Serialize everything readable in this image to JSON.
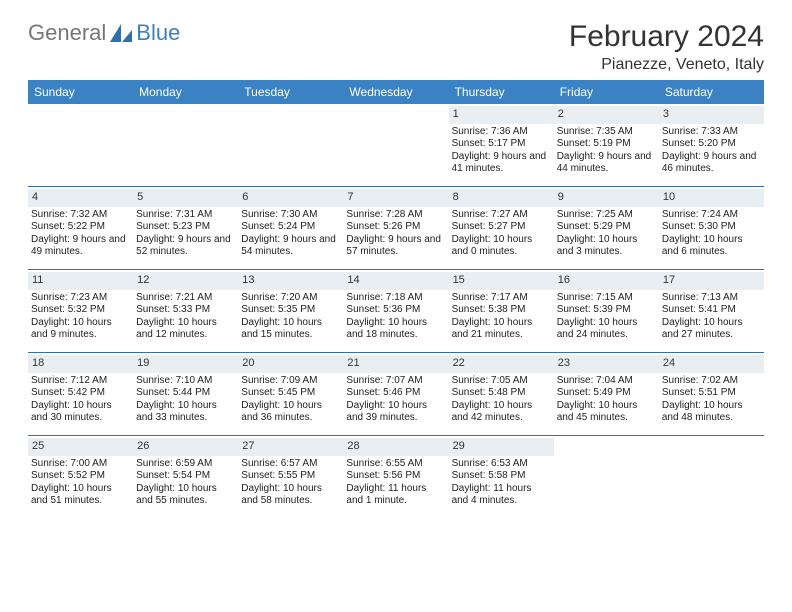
{
  "brand": {
    "part1": "General",
    "part2": "Blue"
  },
  "title": "February 2024",
  "location": "Pianezze, Veneto, Italy",
  "colors": {
    "header_bg": "#3b82c4",
    "band_bg": "#e9eef2",
    "rule": "#3b6fa0",
    "logo_blue": "#3b7fc4",
    "logo_gray": "#777",
    "text": "#222"
  },
  "day_names": [
    "Sunday",
    "Monday",
    "Tuesday",
    "Wednesday",
    "Thursday",
    "Friday",
    "Saturday"
  ],
  "weeks": [
    [
      {
        "n": "",
        "sr": "",
        "ss": "",
        "dl": ""
      },
      {
        "n": "",
        "sr": "",
        "ss": "",
        "dl": ""
      },
      {
        "n": "",
        "sr": "",
        "ss": "",
        "dl": ""
      },
      {
        "n": "",
        "sr": "",
        "ss": "",
        "dl": ""
      },
      {
        "n": "1",
        "sr": "Sunrise: 7:36 AM",
        "ss": "Sunset: 5:17 PM",
        "dl": "Daylight: 9 hours and 41 minutes."
      },
      {
        "n": "2",
        "sr": "Sunrise: 7:35 AM",
        "ss": "Sunset: 5:19 PM",
        "dl": "Daylight: 9 hours and 44 minutes."
      },
      {
        "n": "3",
        "sr": "Sunrise: 7:33 AM",
        "ss": "Sunset: 5:20 PM",
        "dl": "Daylight: 9 hours and 46 minutes."
      }
    ],
    [
      {
        "n": "4",
        "sr": "Sunrise: 7:32 AM",
        "ss": "Sunset: 5:22 PM",
        "dl": "Daylight: 9 hours and 49 minutes."
      },
      {
        "n": "5",
        "sr": "Sunrise: 7:31 AM",
        "ss": "Sunset: 5:23 PM",
        "dl": "Daylight: 9 hours and 52 minutes."
      },
      {
        "n": "6",
        "sr": "Sunrise: 7:30 AM",
        "ss": "Sunset: 5:24 PM",
        "dl": "Daylight: 9 hours and 54 minutes."
      },
      {
        "n": "7",
        "sr": "Sunrise: 7:28 AM",
        "ss": "Sunset: 5:26 PM",
        "dl": "Daylight: 9 hours and 57 minutes."
      },
      {
        "n": "8",
        "sr": "Sunrise: 7:27 AM",
        "ss": "Sunset: 5:27 PM",
        "dl": "Daylight: 10 hours and 0 minutes."
      },
      {
        "n": "9",
        "sr": "Sunrise: 7:25 AM",
        "ss": "Sunset: 5:29 PM",
        "dl": "Daylight: 10 hours and 3 minutes."
      },
      {
        "n": "10",
        "sr": "Sunrise: 7:24 AM",
        "ss": "Sunset: 5:30 PM",
        "dl": "Daylight: 10 hours and 6 minutes."
      }
    ],
    [
      {
        "n": "11",
        "sr": "Sunrise: 7:23 AM",
        "ss": "Sunset: 5:32 PM",
        "dl": "Daylight: 10 hours and 9 minutes."
      },
      {
        "n": "12",
        "sr": "Sunrise: 7:21 AM",
        "ss": "Sunset: 5:33 PM",
        "dl": "Daylight: 10 hours and 12 minutes."
      },
      {
        "n": "13",
        "sr": "Sunrise: 7:20 AM",
        "ss": "Sunset: 5:35 PM",
        "dl": "Daylight: 10 hours and 15 minutes."
      },
      {
        "n": "14",
        "sr": "Sunrise: 7:18 AM",
        "ss": "Sunset: 5:36 PM",
        "dl": "Daylight: 10 hours and 18 minutes."
      },
      {
        "n": "15",
        "sr": "Sunrise: 7:17 AM",
        "ss": "Sunset: 5:38 PM",
        "dl": "Daylight: 10 hours and 21 minutes."
      },
      {
        "n": "16",
        "sr": "Sunrise: 7:15 AM",
        "ss": "Sunset: 5:39 PM",
        "dl": "Daylight: 10 hours and 24 minutes."
      },
      {
        "n": "17",
        "sr": "Sunrise: 7:13 AM",
        "ss": "Sunset: 5:41 PM",
        "dl": "Daylight: 10 hours and 27 minutes."
      }
    ],
    [
      {
        "n": "18",
        "sr": "Sunrise: 7:12 AM",
        "ss": "Sunset: 5:42 PM",
        "dl": "Daylight: 10 hours and 30 minutes."
      },
      {
        "n": "19",
        "sr": "Sunrise: 7:10 AM",
        "ss": "Sunset: 5:44 PM",
        "dl": "Daylight: 10 hours and 33 minutes."
      },
      {
        "n": "20",
        "sr": "Sunrise: 7:09 AM",
        "ss": "Sunset: 5:45 PM",
        "dl": "Daylight: 10 hours and 36 minutes."
      },
      {
        "n": "21",
        "sr": "Sunrise: 7:07 AM",
        "ss": "Sunset: 5:46 PM",
        "dl": "Daylight: 10 hours and 39 minutes."
      },
      {
        "n": "22",
        "sr": "Sunrise: 7:05 AM",
        "ss": "Sunset: 5:48 PM",
        "dl": "Daylight: 10 hours and 42 minutes."
      },
      {
        "n": "23",
        "sr": "Sunrise: 7:04 AM",
        "ss": "Sunset: 5:49 PM",
        "dl": "Daylight: 10 hours and 45 minutes."
      },
      {
        "n": "24",
        "sr": "Sunrise: 7:02 AM",
        "ss": "Sunset: 5:51 PM",
        "dl": "Daylight: 10 hours and 48 minutes."
      }
    ],
    [
      {
        "n": "25",
        "sr": "Sunrise: 7:00 AM",
        "ss": "Sunset: 5:52 PM",
        "dl": "Daylight: 10 hours and 51 minutes."
      },
      {
        "n": "26",
        "sr": "Sunrise: 6:59 AM",
        "ss": "Sunset: 5:54 PM",
        "dl": "Daylight: 10 hours and 55 minutes."
      },
      {
        "n": "27",
        "sr": "Sunrise: 6:57 AM",
        "ss": "Sunset: 5:55 PM",
        "dl": "Daylight: 10 hours and 58 minutes."
      },
      {
        "n": "28",
        "sr": "Sunrise: 6:55 AM",
        "ss": "Sunset: 5:56 PM",
        "dl": "Daylight: 11 hours and 1 minute."
      },
      {
        "n": "29",
        "sr": "Sunrise: 6:53 AM",
        "ss": "Sunset: 5:58 PM",
        "dl": "Daylight: 11 hours and 4 minutes."
      },
      {
        "n": "",
        "sr": "",
        "ss": "",
        "dl": ""
      },
      {
        "n": "",
        "sr": "",
        "ss": "",
        "dl": ""
      }
    ]
  ]
}
